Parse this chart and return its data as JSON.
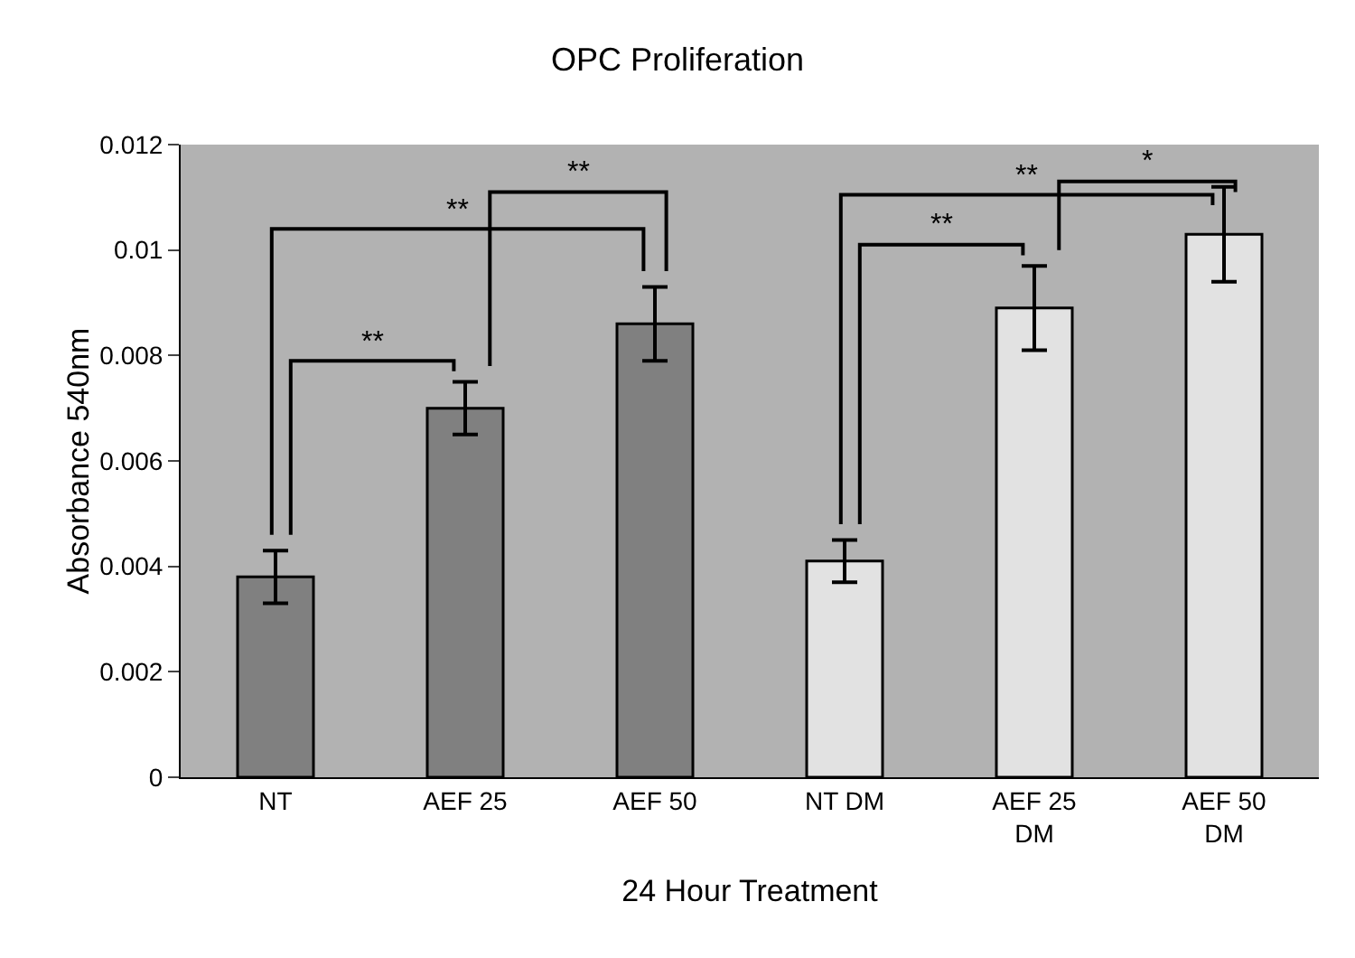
{
  "chart_data": {
    "type": "bar",
    "title": "OPC Proliferation",
    "xlabel": "24 Hour Treatment",
    "ylabel": "Absorbance 540nm",
    "categories": [
      "NT",
      "AEF 25",
      "AEF 50",
      "NT DM",
      "AEF 25 DM",
      "AEF 50 DM"
    ],
    "values": [
      0.0038,
      0.007,
      0.0086,
      0.0041,
      0.0089,
      0.0103
    ],
    "errors": [
      0.0005,
      0.0005,
      0.0007,
      0.0004,
      0.0008,
      0.0009
    ],
    "colors": [
      "#808080",
      "#808080",
      "#808080",
      "#e2e2e2",
      "#e2e2e2",
      "#e2e2e2"
    ],
    "ylim": [
      0,
      0.012
    ],
    "yticks": [
      {
        "value": 0,
        "label": "0"
      },
      0.002,
      0.004,
      0.006,
      0.008,
      0.01,
      0.012
    ],
    "annotations": [
      "**",
      "**",
      "**",
      "**",
      "**",
      "*"
    ],
    "grid": false
  }
}
